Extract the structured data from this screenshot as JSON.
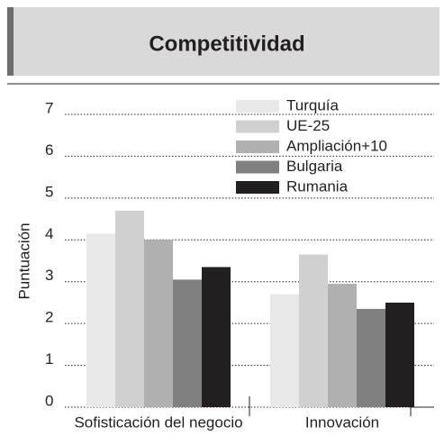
{
  "chart_data": {
    "type": "bar",
    "title": "Competitividad",
    "y_label": "Puntuación",
    "categories": [
      "Sofisticación del negocio",
      "Innovación"
    ],
    "series": [
      {
        "name": "Turquía",
        "color": "#e8e8e8",
        "values": [
          4.15,
          2.7
        ]
      },
      {
        "name": "UE-25",
        "color": "#d0d0d0",
        "values": [
          4.7,
          3.65
        ]
      },
      {
        "name": "Ampliación+10",
        "color": "#b0b0b0",
        "values": [
          4.0,
          2.95
        ]
      },
      {
        "name": "Bulgaria",
        "color": "#808080",
        "values": [
          3.05,
          2.35
        ]
      },
      {
        "name": "Rumania",
        "color": "#231f20",
        "values": [
          3.35,
          2.5
        ]
      }
    ],
    "ylim": [
      0,
      7
    ],
    "yticks": [
      0,
      1,
      2,
      3,
      4,
      5,
      6,
      7
    ],
    "grid": true,
    "legend": "top-right"
  }
}
